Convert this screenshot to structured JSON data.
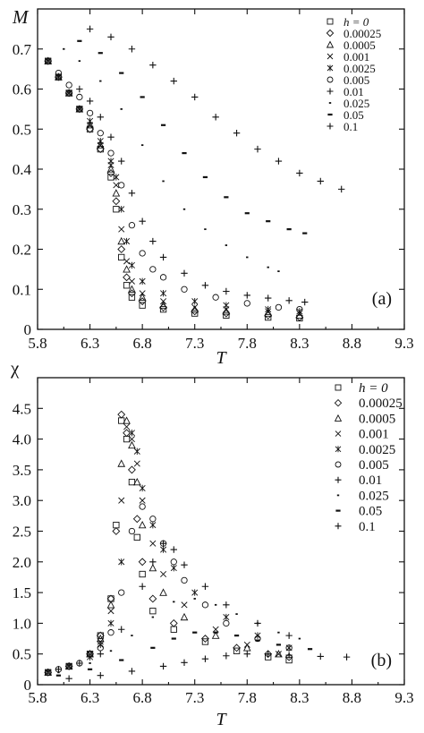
{
  "chart_data": [
    {
      "panel": "(a)",
      "type": "scatter",
      "xlabel": "T",
      "ylabel": "M",
      "xlim": [
        5.8,
        9.3
      ],
      "ylim": [
        0,
        0.8
      ],
      "xticks": [
        "5.8",
        "6.3",
        "6.8",
        "7.3",
        "7.8",
        "8.3",
        "8.8",
        "9.3"
      ],
      "yticks": [
        "0",
        "0.1",
        "0.2",
        "0.3",
        "0.4",
        "0.5",
        "0.6",
        "0.7"
      ],
      "legend_title": "h = 0",
      "legend_placement": "top-right",
      "series": [
        {
          "name": "h = 0",
          "marker": "square",
          "x": [
            5.9,
            6.0,
            6.1,
            6.2,
            6.3,
            6.4,
            6.5,
            6.55,
            6.6,
            6.65,
            6.7,
            6.8,
            7.0,
            7.3,
            7.6,
            8.0,
            8.3
          ],
          "y": [
            0.67,
            0.63,
            0.59,
            0.55,
            0.5,
            0.45,
            0.38,
            0.3,
            0.18,
            0.11,
            0.08,
            0.06,
            0.05,
            0.04,
            0.035,
            0.03,
            0.028
          ]
        },
        {
          "name": "0.00025",
          "marker": "diamond",
          "x": [
            5.9,
            6.0,
            6.1,
            6.2,
            6.3,
            6.4,
            6.5,
            6.55,
            6.6,
            6.65,
            6.7,
            6.8,
            7.0,
            7.3,
            7.6,
            8.0,
            8.3
          ],
          "y": [
            0.67,
            0.63,
            0.59,
            0.55,
            0.5,
            0.45,
            0.39,
            0.32,
            0.2,
            0.13,
            0.09,
            0.07,
            0.055,
            0.045,
            0.04,
            0.035,
            0.03
          ]
        },
        {
          "name": "0.0005",
          "marker": "triangle",
          "x": [
            5.9,
            6.0,
            6.1,
            6.2,
            6.3,
            6.4,
            6.5,
            6.55,
            6.6,
            6.65,
            6.7,
            6.8,
            7.0,
            7.3,
            7.6,
            8.0,
            8.3
          ],
          "y": [
            0.67,
            0.63,
            0.59,
            0.55,
            0.51,
            0.46,
            0.4,
            0.34,
            0.22,
            0.15,
            0.1,
            0.08,
            0.06,
            0.05,
            0.045,
            0.04,
            0.035
          ]
        },
        {
          "name": "0.001",
          "marker": "x",
          "x": [
            5.9,
            6.0,
            6.1,
            6.2,
            6.3,
            6.4,
            6.5,
            6.55,
            6.6,
            6.65,
            6.7,
            6.8,
            7.0,
            7.3,
            7.6,
            8.0,
            8.3
          ],
          "y": [
            0.67,
            0.63,
            0.59,
            0.55,
            0.51,
            0.46,
            0.41,
            0.36,
            0.25,
            0.17,
            0.12,
            0.09,
            0.07,
            0.055,
            0.05,
            0.045,
            0.04
          ]
        },
        {
          "name": "0.0025",
          "marker": "asterisk",
          "x": [
            5.9,
            6.0,
            6.1,
            6.2,
            6.3,
            6.4,
            6.5,
            6.55,
            6.6,
            6.65,
            6.7,
            6.8,
            7.0,
            7.3,
            7.6,
            8.0,
            8.3
          ],
          "y": [
            0.67,
            0.63,
            0.59,
            0.55,
            0.52,
            0.47,
            0.42,
            0.38,
            0.3,
            0.22,
            0.16,
            0.12,
            0.09,
            0.07,
            0.06,
            0.05,
            0.045
          ]
        },
        {
          "name": "0.005",
          "marker": "circle",
          "x": [
            6.0,
            6.1,
            6.2,
            6.3,
            6.4,
            6.5,
            6.6,
            6.7,
            6.8,
            6.9,
            7.0,
            7.2,
            7.5,
            7.8,
            8.1,
            8.3
          ],
          "y": [
            0.64,
            0.61,
            0.58,
            0.54,
            0.49,
            0.44,
            0.36,
            0.26,
            0.19,
            0.15,
            0.13,
            0.1,
            0.08,
            0.065,
            0.055,
            0.05
          ]
        },
        {
          "name": "0.01",
          "marker": "plus",
          "x": [
            6.2,
            6.3,
            6.4,
            6.5,
            6.6,
            6.7,
            6.8,
            6.9,
            7.0,
            7.2,
            7.4,
            7.6,
            7.8,
            8.0,
            8.2,
            8.35
          ],
          "y": [
            0.6,
            0.57,
            0.53,
            0.48,
            0.42,
            0.34,
            0.27,
            0.22,
            0.18,
            0.14,
            0.11,
            0.095,
            0.085,
            0.078,
            0.072,
            0.068
          ]
        },
        {
          "name": "0.025",
          "marker": "dot",
          "x": [
            6.05,
            6.2,
            6.4,
            6.6,
            6.8,
            7.0,
            7.2,
            7.4,
            7.6,
            7.8,
            8.0,
            8.1
          ],
          "y": [
            0.7,
            0.67,
            0.62,
            0.55,
            0.46,
            0.37,
            0.3,
            0.25,
            0.21,
            0.18,
            0.155,
            0.145
          ]
        },
        {
          "name": "0.05",
          "marker": "dash",
          "x": [
            6.2,
            6.4,
            6.6,
            6.8,
            7.0,
            7.2,
            7.4,
            7.6,
            7.8,
            8.0,
            8.2,
            8.35
          ],
          "y": [
            0.72,
            0.69,
            0.64,
            0.58,
            0.51,
            0.44,
            0.38,
            0.33,
            0.29,
            0.27,
            0.25,
            0.24
          ]
        },
        {
          "name": "0.1",
          "marker": "plus",
          "x": [
            6.3,
            6.5,
            6.7,
            6.9,
            7.1,
            7.3,
            7.5,
            7.7,
            7.9,
            8.1,
            8.3,
            8.5,
            8.7
          ],
          "y": [
            0.75,
            0.73,
            0.7,
            0.66,
            0.62,
            0.58,
            0.53,
            0.49,
            0.45,
            0.42,
            0.39,
            0.37,
            0.35
          ]
        }
      ]
    },
    {
      "panel": "(b)",
      "type": "scatter",
      "xlabel": "T",
      "ylabel": "χ",
      "xlim": [
        5.8,
        9.3
      ],
      "ylim": [
        0,
        5.0
      ],
      "xticks": [
        "5.8",
        "6.3",
        "6.8",
        "7.3",
        "7.8",
        "8.3",
        "8.8",
        "9.3"
      ],
      "yticks": [
        "0",
        "0.5",
        "1.0",
        "1.5",
        "2.0",
        "2.5",
        "3.0",
        "3.5",
        "4.0",
        "4.5"
      ],
      "legend_title": "h = 0",
      "legend_placement": "top-right",
      "series": [
        {
          "name": "h = 0",
          "marker": "square",
          "x": [
            5.9,
            6.1,
            6.3,
            6.4,
            6.5,
            6.55,
            6.6,
            6.65,
            6.7,
            6.75,
            6.8,
            6.9,
            7.1,
            7.4,
            7.7,
            8.0,
            8.2
          ],
          "y": [
            0.2,
            0.3,
            0.5,
            0.8,
            1.4,
            2.6,
            4.3,
            4.0,
            3.3,
            2.4,
            1.8,
            1.2,
            0.9,
            0.7,
            0.55,
            0.45,
            0.4
          ]
        },
        {
          "name": "0.00025",
          "marker": "diamond",
          "x": [
            5.9,
            6.1,
            6.3,
            6.4,
            6.5,
            6.55,
            6.6,
            6.65,
            6.7,
            6.75,
            6.8,
            6.9,
            7.1,
            7.4,
            7.7,
            8.0,
            8.2
          ],
          "y": [
            0.2,
            0.3,
            0.5,
            0.8,
            1.4,
            2.5,
            4.4,
            4.1,
            3.5,
            2.7,
            2.0,
            1.4,
            1.0,
            0.75,
            0.6,
            0.5,
            0.45
          ]
        },
        {
          "name": "0.0005",
          "marker": "triangle",
          "x": [
            5.9,
            6.1,
            6.3,
            6.4,
            6.5,
            6.6,
            6.65,
            6.7,
            6.75,
            6.8,
            6.9,
            7.0,
            7.2,
            7.5,
            7.8,
            8.1
          ],
          "y": [
            0.2,
            0.3,
            0.5,
            0.75,
            1.3,
            3.6,
            4.3,
            3.9,
            3.3,
            2.6,
            1.9,
            1.5,
            1.1,
            0.8,
            0.6,
            0.5
          ]
        },
        {
          "name": "0.001",
          "marker": "x",
          "x": [
            5.9,
            6.1,
            6.3,
            6.4,
            6.5,
            6.6,
            6.65,
            6.7,
            6.75,
            6.8,
            6.9,
            7.0,
            7.2,
            7.5,
            7.8,
            8.1
          ],
          "y": [
            0.2,
            0.3,
            0.5,
            0.7,
            1.2,
            3.0,
            4.2,
            4.0,
            3.6,
            3.0,
            2.3,
            1.8,
            1.3,
            0.9,
            0.65,
            0.5
          ]
        },
        {
          "name": "0.0025",
          "marker": "asterisk",
          "x": [
            5.9,
            6.1,
            6.3,
            6.4,
            6.5,
            6.6,
            6.7,
            6.75,
            6.8,
            6.9,
            7.0,
            7.1,
            7.3,
            7.6,
            7.9,
            8.2
          ],
          "y": [
            0.2,
            0.3,
            0.45,
            0.65,
            1.0,
            2.0,
            4.1,
            3.8,
            3.2,
            2.6,
            2.2,
            1.9,
            1.5,
            1.1,
            0.8,
            0.6
          ]
        },
        {
          "name": "0.005",
          "marker": "circle",
          "x": [
            6.0,
            6.2,
            6.4,
            6.5,
            6.6,
            6.7,
            6.8,
            6.9,
            7.0,
            7.1,
            7.2,
            7.4,
            7.6,
            7.9,
            8.2
          ],
          "y": [
            0.25,
            0.35,
            0.6,
            0.85,
            1.5,
            2.5,
            2.9,
            2.7,
            2.3,
            2.0,
            1.7,
            1.3,
            1.0,
            0.75,
            0.6
          ]
        },
        {
          "name": "0.01",
          "marker": "plus",
          "x": [
            6.0,
            6.2,
            6.4,
            6.6,
            6.8,
            6.9,
            7.0,
            7.1,
            7.2,
            7.4,
            7.6,
            7.9,
            8.2
          ],
          "y": [
            0.25,
            0.35,
            0.5,
            0.9,
            1.6,
            2.0,
            2.3,
            2.2,
            1.95,
            1.6,
            1.3,
            1.0,
            0.8
          ]
        },
        {
          "name": "0.025",
          "marker": "dot",
          "x": [
            6.0,
            6.3,
            6.5,
            6.7,
            6.9,
            7.1,
            7.3,
            7.5,
            7.7,
            7.9,
            8.1,
            8.3
          ],
          "y": [
            0.2,
            0.35,
            0.55,
            0.8,
            1.1,
            1.35,
            1.4,
            1.3,
            1.15,
            1.0,
            0.85,
            0.75
          ]
        },
        {
          "name": "0.05",
          "marker": "dash",
          "x": [
            6.0,
            6.3,
            6.6,
            6.9,
            7.1,
            7.3,
            7.5,
            7.7,
            7.9,
            8.1,
            8.4
          ],
          "y": [
            0.15,
            0.25,
            0.4,
            0.6,
            0.75,
            0.85,
            0.85,
            0.8,
            0.72,
            0.65,
            0.58
          ]
        },
        {
          "name": "0.1",
          "marker": "plus",
          "x": [
            6.1,
            6.4,
            6.7,
            7.0,
            7.2,
            7.4,
            7.6,
            7.8,
            8.0,
            8.2,
            8.5,
            8.75
          ],
          "y": [
            0.1,
            0.15,
            0.22,
            0.3,
            0.36,
            0.42,
            0.47,
            0.5,
            0.5,
            0.48,
            0.46,
            0.45
          ]
        }
      ]
    }
  ]
}
